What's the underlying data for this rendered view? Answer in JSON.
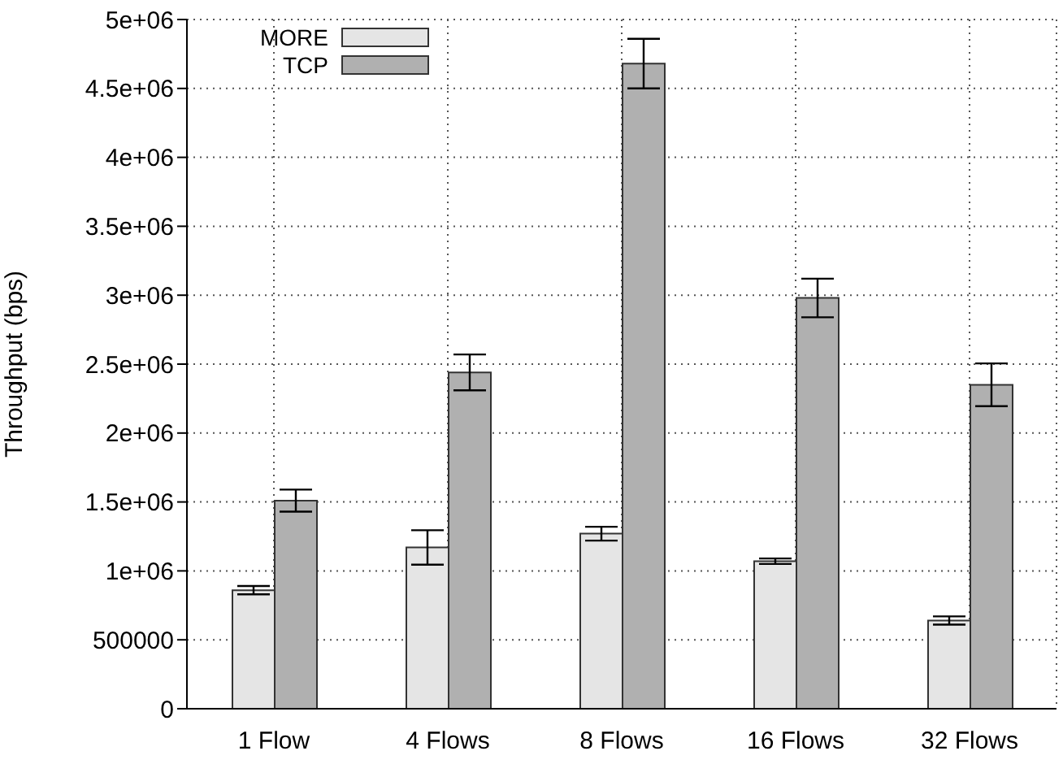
{
  "chart_data": {
    "type": "bar",
    "ylabel": "Throughput (bps)",
    "categories": [
      "1 Flow",
      "4 Flows",
      "8 Flows",
      "16 Flows",
      "32 Flows"
    ],
    "series": [
      {
        "name": "MORE",
        "color": "#e5e5e5",
        "values": [
          860000,
          1170000,
          1270000,
          1070000,
          640000
        ],
        "errors": [
          30000,
          125000,
          50000,
          20000,
          30000
        ]
      },
      {
        "name": "TCP",
        "color": "#b0b0b0",
        "values": [
          1510000,
          2440000,
          4680000,
          2980000,
          2350000
        ],
        "errors": [
          80000,
          130000,
          180000,
          140000,
          155000
        ]
      }
    ],
    "ylim": [
      0,
      5000000
    ],
    "yticks": [
      0,
      500000,
      {
        "value": 1000000,
        "label": "1e+06"
      },
      {
        "value": 1500000,
        "label": "1.5e+06"
      },
      {
        "value": 2000000,
        "label": "2e+06"
      },
      {
        "value": 2500000,
        "label": "2.5e+06"
      },
      {
        "value": 3000000,
        "label": "3e+06"
      },
      {
        "value": 3500000,
        "label": "3.5e+06"
      },
      {
        "value": 4000000,
        "label": "4e+06"
      },
      {
        "value": 4500000,
        "label": "4.5e+06"
      },
      {
        "value": 5000000,
        "label": "5e+06"
      }
    ],
    "grid": true,
    "legend": "top left"
  }
}
